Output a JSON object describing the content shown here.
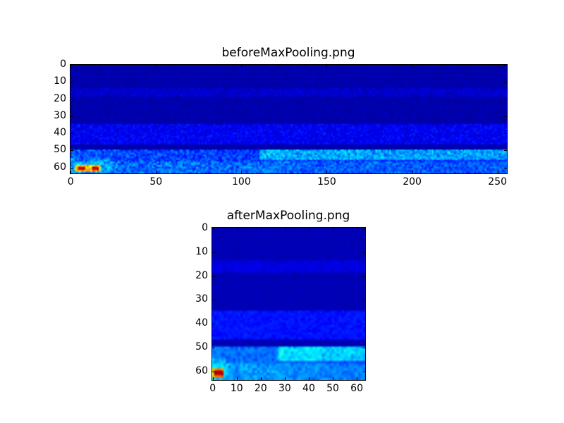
{
  "chart_data": [
    {
      "type": "heatmap",
      "title": "beforeMaxPooling.png",
      "colormap": "jet",
      "rows": 64,
      "cols": 256,
      "xlim": [
        -0.5,
        255.5
      ],
      "ylim": [
        63.5,
        -0.5
      ],
      "y_inverted": true,
      "xticks": [
        0,
        50,
        100,
        150,
        200,
        250
      ],
      "yticks": [
        0,
        10,
        20,
        30,
        40,
        50,
        60
      ],
      "xtick_labels": [
        "0",
        "50",
        "100",
        "150",
        "200",
        "250"
      ],
      "ytick_labels": [
        "0",
        "10",
        "20",
        "30",
        "40",
        "50",
        "60"
      ],
      "grid": false,
      "notes_features": {
        "hotspot": {
          "cols": [
            3,
            17
          ],
          "rows": [
            59,
            62
          ],
          "level": "max"
        },
        "bright_band_rows": [
          50,
          63
        ],
        "faint_band_rows": [
          [
            14,
            18
          ],
          [
            35,
            45
          ]
        ]
      }
    },
    {
      "type": "heatmap",
      "title": "afterMaxPooling.png",
      "colormap": "jet",
      "rows": 64,
      "cols": 64,
      "xlim": [
        -0.5,
        63.5
      ],
      "ylim": [
        63.5,
        -0.5
      ],
      "y_inverted": true,
      "xticks": [
        0,
        10,
        20,
        30,
        40,
        50,
        60
      ],
      "yticks": [
        0,
        10,
        20,
        30,
        40,
        50,
        60
      ],
      "xtick_labels": [
        "0",
        "10",
        "20",
        "30",
        "40",
        "50",
        "60"
      ],
      "ytick_labels": [
        "0",
        "10",
        "20",
        "30",
        "40",
        "50",
        "60"
      ],
      "grid": false,
      "pooling": {
        "type": "max",
        "window_cols": 4
      }
    }
  ]
}
